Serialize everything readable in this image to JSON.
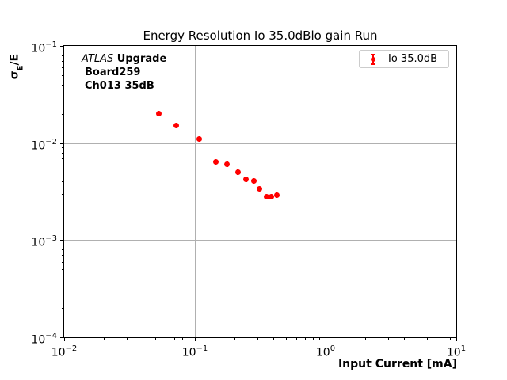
{
  "title": "Energy Resolution Io 35.0dBlo gain Run",
  "annotation": {
    "line1_italic": "ATLAS",
    "line1_bold": " Upgrade",
    "line2": "Board259",
    "line3": "Ch013 35dB"
  },
  "legend": {
    "label": "Io 35.0dB"
  },
  "axis": {
    "xlabel": "Input Current [mA]",
    "ylabel_sigma": "σ",
    "ylabel_sub": "E",
    "ylabel_rest": "/E"
  },
  "colors": {
    "marker": "#ff0000",
    "grid": "#b0b0b0",
    "spine": "#000000",
    "legend_border": "#cccccc",
    "background": "#ffffff"
  },
  "chart_data": {
    "type": "scatter",
    "title": "Energy Resolution Io 35.0dBlo gain Run",
    "xlabel": "Input Current [mA]",
    "ylabel": "σE/E",
    "xscale": "log",
    "yscale": "log",
    "xlim": [
      0.01,
      10
    ],
    "ylim": [
      0.0001,
      0.1
    ],
    "xtick_exponents": [
      -2,
      -1,
      0,
      1
    ],
    "ytick_exponents": [
      -1,
      -2,
      -3,
      -4
    ],
    "grid": "major",
    "legend_position": "upper right",
    "annotation_lines": [
      "ATLAS Upgrade",
      "Board259",
      "Ch013 35dB"
    ],
    "series": [
      {
        "name": "Io 35.0dB",
        "color": "#ff0000",
        "marker": "circle with error bars",
        "x": [
          0.053,
          0.072,
          0.108,
          0.144,
          0.177,
          0.213,
          0.247,
          0.282,
          0.311,
          0.354,
          0.385,
          0.422
        ],
        "y": [
          0.0202,
          0.0153,
          0.011,
          0.0064,
          0.006,
          0.005,
          0.0042,
          0.0041,
          0.0034,
          0.0028,
          0.0028,
          0.0029
        ]
      }
    ]
  }
}
